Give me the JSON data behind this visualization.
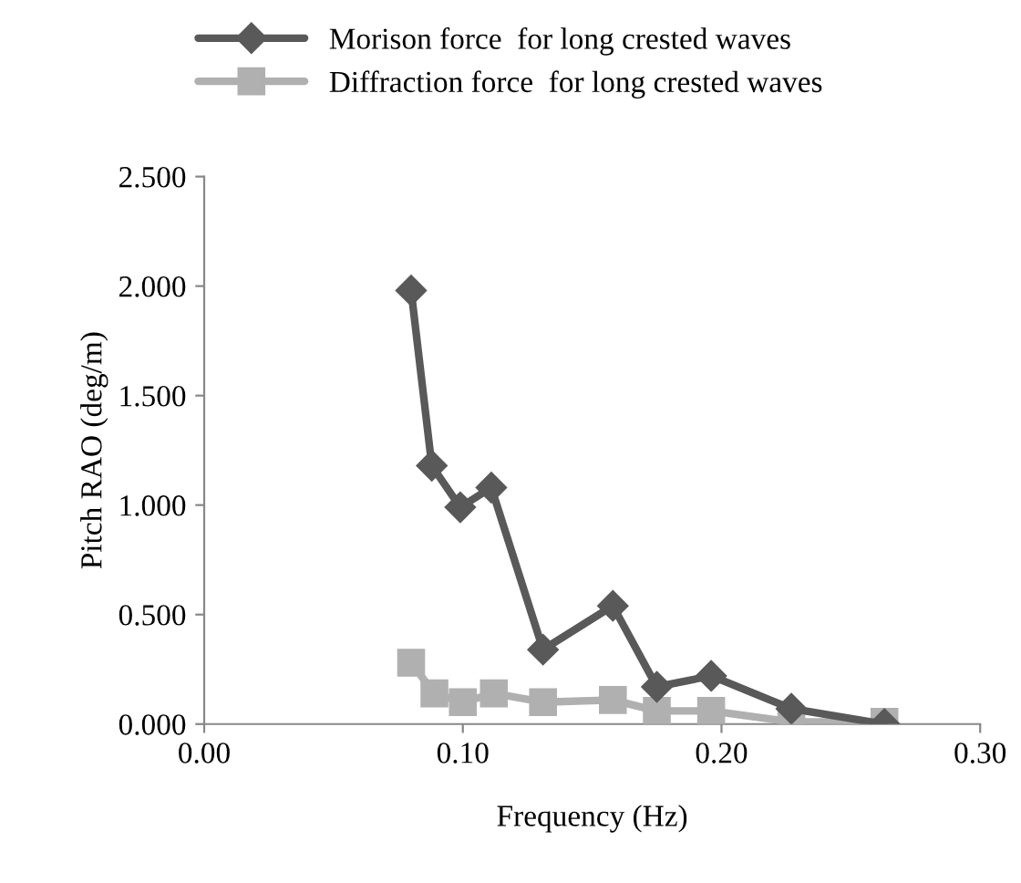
{
  "chart_data": {
    "type": "line",
    "xlabel": "Frequency (Hz)",
    "ylabel": "Pitch RAO (deg/m)",
    "xlim": [
      0,
      0.3
    ],
    "xticks": [
      {
        "value": 0,
        "label": "0.00"
      },
      {
        "value": 0.1,
        "label": "0.10"
      },
      {
        "value": 0.2,
        "label": "0.20"
      },
      {
        "value": 0.3,
        "label": "0.30"
      }
    ],
    "ylim": [
      0,
      2.5
    ],
    "yticks": [
      {
        "value": 0,
        "label": "0.000"
      },
      {
        "value": 0.5,
        "label": "0.500"
      },
      {
        "value": 1,
        "label": "1.000"
      },
      {
        "value": 1.5,
        "label": "1.500"
      },
      {
        "value": 2,
        "label": "2.000"
      },
      {
        "value": 2.5,
        "label": "2.500"
      }
    ],
    "grid": false,
    "legend": "top",
    "line_style": "solid",
    "series": [
      {
        "name": "Morison force  for long crested waves",
        "color": "#595959",
        "marker": "diamond",
        "x": [
          0.08,
          0.088,
          0.099,
          0.111,
          0.131,
          0.158,
          0.175,
          0.196,
          0.227,
          0.263
        ],
        "values": [
          1.98,
          1.18,
          0.99,
          1.08,
          0.34,
          0.54,
          0.17,
          0.22,
          0.07,
          0.0
        ]
      },
      {
        "name": "Diffraction force  for long crested waves",
        "color": "#b0b0b0",
        "marker": "square",
        "x": [
          0.08,
          0.089,
          0.1,
          0.112,
          0.131,
          0.158,
          0.175,
          0.196,
          0.227,
          0.263
        ],
        "values": [
          0.28,
          0.14,
          0.1,
          0.14,
          0.1,
          0.11,
          0.06,
          0.06,
          0.01,
          0.01
        ]
      }
    ]
  }
}
